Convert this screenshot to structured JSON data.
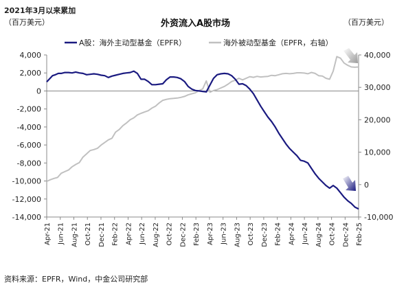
{
  "chart_data": {
    "type": "line",
    "title": "外资流入A股市场",
    "period_note": "2021年3月以来累加",
    "left_unit": "（百万美元）",
    "right_unit": "（百万美元）",
    "source": "资料来源：EPFR，Wind，中金公司研究部",
    "x_labels": [
      "Apr-21",
      "Jun-21",
      "Aug-21",
      "Oct-21",
      "Dec-21",
      "Feb-22",
      "Apr-22",
      "Jun-22",
      "Aug-22",
      "Oct-22",
      "Dec-22",
      "Feb-23",
      "Apr-23",
      "Jun-23",
      "Aug-23",
      "Oct-23",
      "Dec-23",
      "Feb-24",
      "Apr-24",
      "Jun-24",
      "Aug-24",
      "Oct-24",
      "Dec-24",
      "Feb-25"
    ],
    "y_left": {
      "min": -14000,
      "max": 4000,
      "ticks": [
        -14000,
        -12000,
        -10000,
        -8000,
        -6000,
        -4000,
        -2000,
        0,
        2000,
        4000
      ]
    },
    "y_right": {
      "min": -10000,
      "max": 40000,
      "ticks": [
        -10000,
        0,
        10000,
        20000,
        30000,
        40000
      ]
    },
    "series": [
      {
        "name": "A股：海外主动型基金（EPFR）",
        "axis": "left",
        "color": "#1a1a80",
        "values": [
          [
            0,
            1000
          ],
          [
            0.4,
            1350
          ],
          [
            0.8,
            1700
          ],
          [
            1.2,
            1800
          ],
          [
            1.6,
            1950
          ],
          [
            2,
            1950
          ],
          [
            2.5,
            2050
          ],
          [
            3,
            2050
          ],
          [
            3.5,
            2000
          ],
          [
            4,
            2100
          ],
          [
            4.5,
            2000
          ],
          [
            5,
            1950
          ],
          [
            5.5,
            1800
          ],
          [
            6,
            1850
          ],
          [
            6.5,
            1900
          ],
          [
            7,
            1850
          ],
          [
            7.5,
            1750
          ],
          [
            8,
            1700
          ],
          [
            8.5,
            1500
          ],
          [
            9,
            1650
          ],
          [
            9.5,
            1750
          ],
          [
            10,
            1850
          ],
          [
            10.5,
            1950
          ],
          [
            11,
            2000
          ],
          [
            11.5,
            2050
          ],
          [
            12,
            2200
          ],
          [
            12.5,
            1950
          ],
          [
            13,
            1300
          ],
          [
            13.5,
            1300
          ],
          [
            14,
            1050
          ],
          [
            14.5,
            700
          ],
          [
            15,
            700
          ],
          [
            15.5,
            750
          ],
          [
            16,
            800
          ],
          [
            16.5,
            1250
          ],
          [
            17,
            1550
          ],
          [
            17.5,
            1550
          ],
          [
            18,
            1500
          ],
          [
            18.5,
            1350
          ],
          [
            19,
            1050
          ],
          [
            19.5,
            500
          ],
          [
            20,
            200
          ],
          [
            20.5,
            50
          ],
          [
            21,
            0
          ],
          [
            21.5,
            -50
          ],
          [
            22,
            -100
          ],
          [
            22.5,
            650
          ],
          [
            23,
            1400
          ],
          [
            23.5,
            1800
          ],
          [
            24,
            1900
          ],
          [
            24.5,
            1950
          ],
          [
            25,
            1900
          ],
          [
            25.5,
            1700
          ],
          [
            26,
            1300
          ],
          [
            26.5,
            750
          ],
          [
            27,
            800
          ],
          [
            27.5,
            600
          ],
          [
            28,
            200
          ],
          [
            28.5,
            -300
          ],
          [
            29,
            -1000
          ],
          [
            29.5,
            -1700
          ],
          [
            30,
            -2300
          ],
          [
            30.5,
            -2900
          ],
          [
            31,
            -3400
          ],
          [
            31.5,
            -4000
          ],
          [
            32,
            -4700
          ],
          [
            32.5,
            -5300
          ],
          [
            33,
            -5900
          ],
          [
            33.5,
            -6400
          ],
          [
            34,
            -6800
          ],
          [
            34.5,
            -7200
          ],
          [
            35,
            -7700
          ],
          [
            35.5,
            -7800
          ],
          [
            36,
            -8000
          ],
          [
            36.5,
            -8600
          ],
          [
            37,
            -9200
          ],
          [
            37.5,
            -9700
          ],
          [
            38,
            -10100
          ],
          [
            38.5,
            -10500
          ],
          [
            39,
            -10800
          ],
          [
            39.5,
            -10500
          ],
          [
            40,
            -10800
          ],
          [
            40.5,
            -11300
          ],
          [
            41,
            -11800
          ],
          [
            41.5,
            -12200
          ],
          [
            42,
            -12500
          ],
          [
            42.5,
            -12900
          ],
          [
            43,
            -13100
          ]
        ]
      },
      {
        "name": "海外被动型基金（EPFR，右轴）",
        "axis": "right",
        "color": "#c0c0c0",
        "values": [
          [
            0,
            1000
          ],
          [
            0.5,
            1500
          ],
          [
            1,
            1900
          ],
          [
            1.5,
            2200
          ],
          [
            2,
            3500
          ],
          [
            2.5,
            4000
          ],
          [
            3,
            4500
          ],
          [
            3.5,
            5500
          ],
          [
            4,
            6200
          ],
          [
            4.5,
            6800
          ],
          [
            5,
            8500
          ],
          [
            5.5,
            9500
          ],
          [
            6,
            10500
          ],
          [
            6.5,
            10800
          ],
          [
            7,
            11200
          ],
          [
            7.5,
            12200
          ],
          [
            8,
            13000
          ],
          [
            8.5,
            13800
          ],
          [
            9,
            14300
          ],
          [
            9.5,
            16200
          ],
          [
            10,
            17000
          ],
          [
            10.5,
            18200
          ],
          [
            11,
            19000
          ],
          [
            11.5,
            20000
          ],
          [
            12,
            20600
          ],
          [
            12.5,
            21500
          ],
          [
            13,
            22000
          ],
          [
            13.5,
            22400
          ],
          [
            14,
            22800
          ],
          [
            14.5,
            23600
          ],
          [
            15,
            24200
          ],
          [
            15.5,
            25200
          ],
          [
            16,
            26000
          ],
          [
            16.5,
            26300
          ],
          [
            17,
            26500
          ],
          [
            17.5,
            26600
          ],
          [
            18,
            26700
          ],
          [
            18.5,
            26900
          ],
          [
            19,
            27200
          ],
          [
            19.5,
            27700
          ],
          [
            20,
            28000
          ],
          [
            20.5,
            28300
          ],
          [
            21,
            29000
          ],
          [
            21.5,
            29500
          ],
          [
            22,
            32000
          ],
          [
            22.5,
            28500
          ],
          [
            23,
            29000
          ],
          [
            23.5,
            29300
          ],
          [
            24,
            29800
          ],
          [
            24.5,
            30300
          ],
          [
            25,
            31000
          ],
          [
            25.5,
            31800
          ],
          [
            26,
            32200
          ],
          [
            26.5,
            32800
          ],
          [
            27,
            32300
          ],
          [
            27.5,
            32800
          ],
          [
            28,
            33300
          ],
          [
            28.5,
            33100
          ],
          [
            29,
            33400
          ],
          [
            29.5,
            33200
          ],
          [
            30,
            33300
          ],
          [
            30.5,
            33400
          ],
          [
            31,
            33700
          ],
          [
            31.5,
            33600
          ],
          [
            32,
            33900
          ],
          [
            32.5,
            34200
          ],
          [
            33,
            34300
          ],
          [
            33.5,
            34200
          ],
          [
            34,
            34300
          ],
          [
            34.5,
            34500
          ],
          [
            35,
            34500
          ],
          [
            35.5,
            34400
          ],
          [
            36,
            34200
          ],
          [
            36.5,
            34600
          ],
          [
            37,
            34300
          ],
          [
            37.5,
            33600
          ],
          [
            38,
            33500
          ],
          [
            38.5,
            32800
          ],
          [
            39,
            32500
          ],
          [
            39.5,
            35000
          ],
          [
            40,
            39500
          ],
          [
            40.5,
            39000
          ],
          [
            41,
            37500
          ],
          [
            41.5,
            36800
          ],
          [
            42,
            36300
          ],
          [
            42.5,
            36200
          ],
          [
            43,
            36300
          ]
        ]
      }
    ]
  }
}
